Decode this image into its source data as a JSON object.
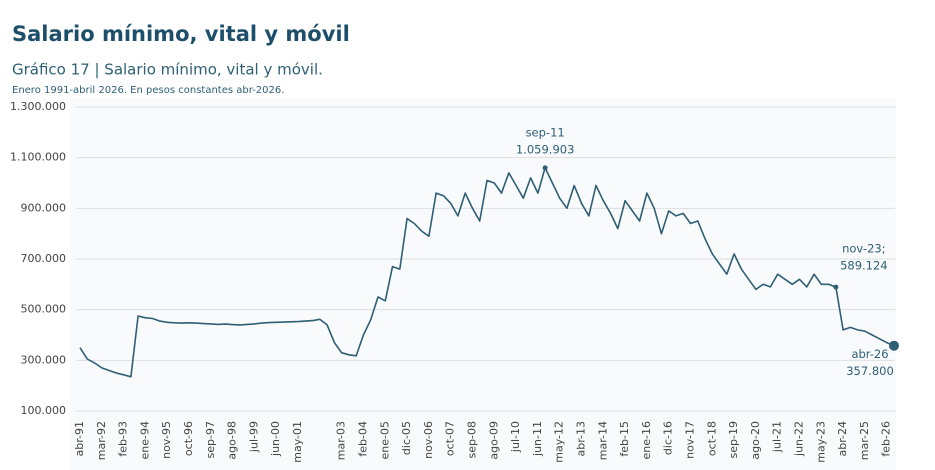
{
  "chart_data": {
    "type": "line",
    "title": "Salario mínimo, vital y móvil",
    "subtitle": "Gráfico 17 | Salario mínimo, vital y móvil.",
    "note": "Enero 1991-abril 2026. En pesos constantes abr-2026.",
    "color": "#2e5f75",
    "grid": true,
    "ylim": [
      100000,
      1300000
    ],
    "yticks": [
      {
        "value": 100000,
        "label": "100.000"
      },
      {
        "value": 300000,
        "label": "300.000"
      },
      {
        "value": 500000,
        "label": "500.000"
      },
      {
        "value": 700000,
        "label": "700.000"
      },
      {
        "value": 900000,
        "label": "900.000"
      },
      {
        "value": 1100000,
        "label": "1.100.000"
      },
      {
        "value": 1300000,
        "label": "1.300.000"
      }
    ],
    "categories": [
      "abr-91",
      null,
      null,
      "mar-92",
      null,
      null,
      "feb-93",
      null,
      null,
      "ene-94",
      null,
      null,
      "nov-95",
      null,
      null,
      "oct-96",
      null,
      null,
      "sep-97",
      null,
      null,
      "ago-98",
      null,
      null,
      "jul-99",
      null,
      null,
      "jun-00",
      null,
      null,
      "may-01",
      null,
      null,
      null,
      null,
      null,
      "mar-03",
      null,
      null,
      "feb-04",
      null,
      null,
      "ene-05",
      null,
      null,
      "dic-05",
      null,
      null,
      "nov-06",
      null,
      null,
      "oct-07",
      null,
      null,
      "sep-08",
      null,
      null,
      "ago-09",
      null,
      null,
      "jul-10",
      null,
      null,
      "jun-11",
      null,
      null,
      "may-12",
      null,
      null,
      "abr-13",
      null,
      null,
      "mar-14",
      null,
      null,
      "feb-15",
      null,
      null,
      "ene-16",
      null,
      null,
      "dic-16",
      null,
      null,
      "nov-17",
      null,
      null,
      "oct-18",
      null,
      null,
      "sep-19",
      null,
      null,
      "ago-20",
      null,
      null,
      "jul-21",
      null,
      null,
      "jun-22",
      null,
      null,
      "may-23",
      null,
      null,
      "abr-24",
      null,
      null,
      "mar-25",
      null,
      null,
      "feb-26",
      null
    ],
    "values": [
      350000,
      305000,
      290000,
      270000,
      260000,
      250000,
      243000,
      235000,
      475000,
      468000,
      465000,
      455000,
      450000,
      448000,
      447000,
      448000,
      447000,
      445000,
      444000,
      442000,
      443000,
      441000,
      440000,
      442000,
      444000,
      447000,
      449000,
      450000,
      451000,
      452000,
      453000,
      455000,
      457000,
      462000,
      440000,
      370000,
      330000,
      322000,
      318000,
      400000,
      460000,
      550000,
      535000,
      670000,
      660000,
      860000,
      840000,
      810000,
      790000,
      960000,
      950000,
      920000,
      870000,
      960000,
      900000,
      850000,
      1010000,
      1000000,
      960000,
      1040000,
      990000,
      940000,
      1020000,
      960000,
      1059903,
      1000000,
      940000,
      900000,
      990000,
      920000,
      870000,
      990000,
      930000,
      880000,
      820000,
      930000,
      890000,
      850000,
      960000,
      900000,
      800000,
      890000,
      870000,
      880000,
      840000,
      850000,
      780000,
      720000,
      680000,
      640000,
      720000,
      660000,
      620000,
      580000,
      600000,
      590000,
      640000,
      620000,
      600000,
      620000,
      590000,
      640000,
      600000,
      600000,
      589124,
      420000,
      430000,
      420000,
      415000,
      400000,
      385000,
      370000,
      357800
    ],
    "annotations": [
      {
        "x": "sep-11",
        "value": 1059903,
        "label": "1.059.903"
      },
      {
        "x": "nov-23;",
        "value": 589124,
        "label": "589.124"
      },
      {
        "x": "abr-26",
        "value": 357800,
        "label": "357.800"
      }
    ]
  }
}
